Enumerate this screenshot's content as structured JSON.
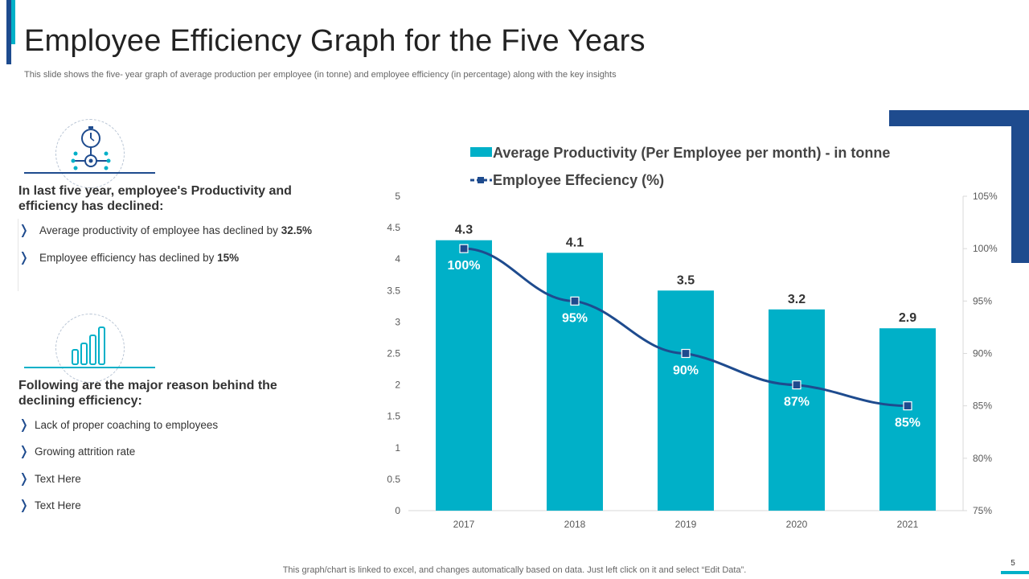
{
  "header": {
    "title": "Employee Efficiency Graph for the Five Years",
    "subtitle": "This slide shows the five- year graph of average production per employee (in tonne) and employee efficiency (in percentage) along with the key insights"
  },
  "left": {
    "section1": {
      "heading": "In last five year, employee's Productivity and efficiency has declined:",
      "bullets": [
        {
          "text": "Average productivity of employee has declined by ",
          "bold": "32.5%"
        },
        {
          "text": "Employee efficiency has declined by ",
          "bold": "15%"
        }
      ]
    },
    "section2": {
      "heading": "Following are the major reason behind the declining efficiency:",
      "bullets": [
        {
          "text": "Lack of proper coaching to employees"
        },
        {
          "text": "Growing attrition rate"
        },
        {
          "text": "Text Here"
        },
        {
          "text": "Text Here"
        }
      ]
    }
  },
  "colors": {
    "bar": "#00b0c8",
    "line": "#1e4b8e",
    "accent_dark": "#1e4b8e",
    "accent_teal": "#00b0c8"
  },
  "chart_data": {
    "type": "bar",
    "categories": [
      "2017",
      "2018",
      "2019",
      "2020",
      "2021"
    ],
    "series": [
      {
        "name": "Average Productivity (Per Employee per month) - in tonne",
        "kind": "bar",
        "axis": "left",
        "values": [
          4.3,
          4.1,
          3.5,
          3.2,
          2.9
        ],
        "labels": [
          "4.3",
          "4.1",
          "3.5",
          "3.2",
          "2.9"
        ]
      },
      {
        "name": "Employee Effeciency (%)",
        "kind": "line",
        "axis": "right",
        "values": [
          100,
          95,
          90,
          87,
          85
        ],
        "labels": [
          "100%",
          "95%",
          "90%",
          "87%",
          "85%"
        ]
      }
    ],
    "y_left": {
      "min": 0,
      "max": 5,
      "ticks": [
        "0",
        "0.5",
        "1",
        "1.5",
        "2",
        "2.5",
        "3",
        "3.5",
        "4",
        "4.5",
        "5"
      ]
    },
    "y_right": {
      "min": 75,
      "max": 105,
      "ticks": [
        "75%",
        "80%",
        "85%",
        "90%",
        "95%",
        "100%",
        "105%"
      ]
    },
    "grid": false,
    "legend": "top"
  },
  "footer": {
    "note": "This graph/chart is linked to excel, and changes automatically based on data. Just left click on it and select “Edit Data”.",
    "page": "5"
  }
}
